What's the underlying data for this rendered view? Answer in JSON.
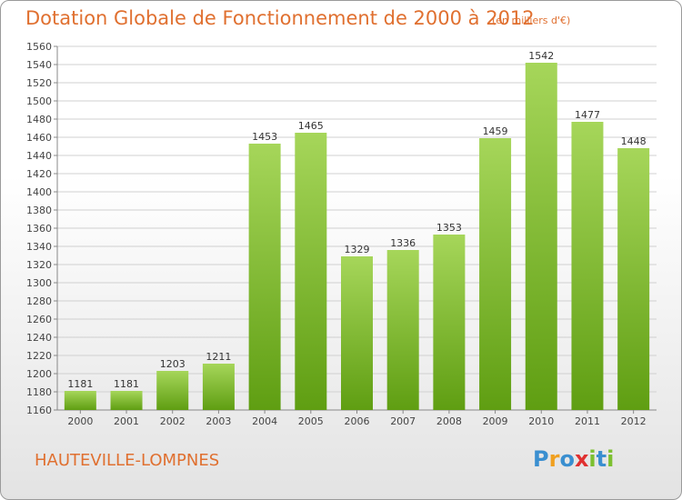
{
  "chart_data": {
    "type": "bar",
    "title": "Dotation Globale de Fonctionnement de 2000 à 2012",
    "subtitle": "(en milliers d'€)",
    "categories": [
      "2000",
      "2001",
      "2002",
      "2003",
      "2004",
      "2005",
      "2006",
      "2007",
      "2008",
      "2009",
      "2010",
      "2011",
      "2012"
    ],
    "values": [
      1181,
      1181,
      1203,
      1211,
      1453,
      1465,
      1329,
      1336,
      1353,
      1459,
      1542,
      1477,
      1448
    ],
    "ylim": [
      1160,
      1560
    ],
    "ytick_step": 20,
    "grid": true,
    "legend": "none",
    "colors": {
      "bar_light": "#a6d65a",
      "bar_dark": "#5f9e12",
      "text": "#e07030"
    }
  },
  "commune": "HAUTEVILLE-LOMPNES",
  "logo": {
    "letters": [
      {
        "ch": "P",
        "color": "#3a8fd0"
      },
      {
        "ch": "r",
        "color": "#f0a020"
      },
      {
        "ch": "o",
        "color": "#3a8fd0"
      },
      {
        "ch": "x",
        "color": "#e03030"
      },
      {
        "ch": "i",
        "color": "#7cc030"
      },
      {
        "ch": "t",
        "color": "#3a8fd0"
      },
      {
        "ch": "i",
        "color": "#7cc030"
      }
    ]
  }
}
